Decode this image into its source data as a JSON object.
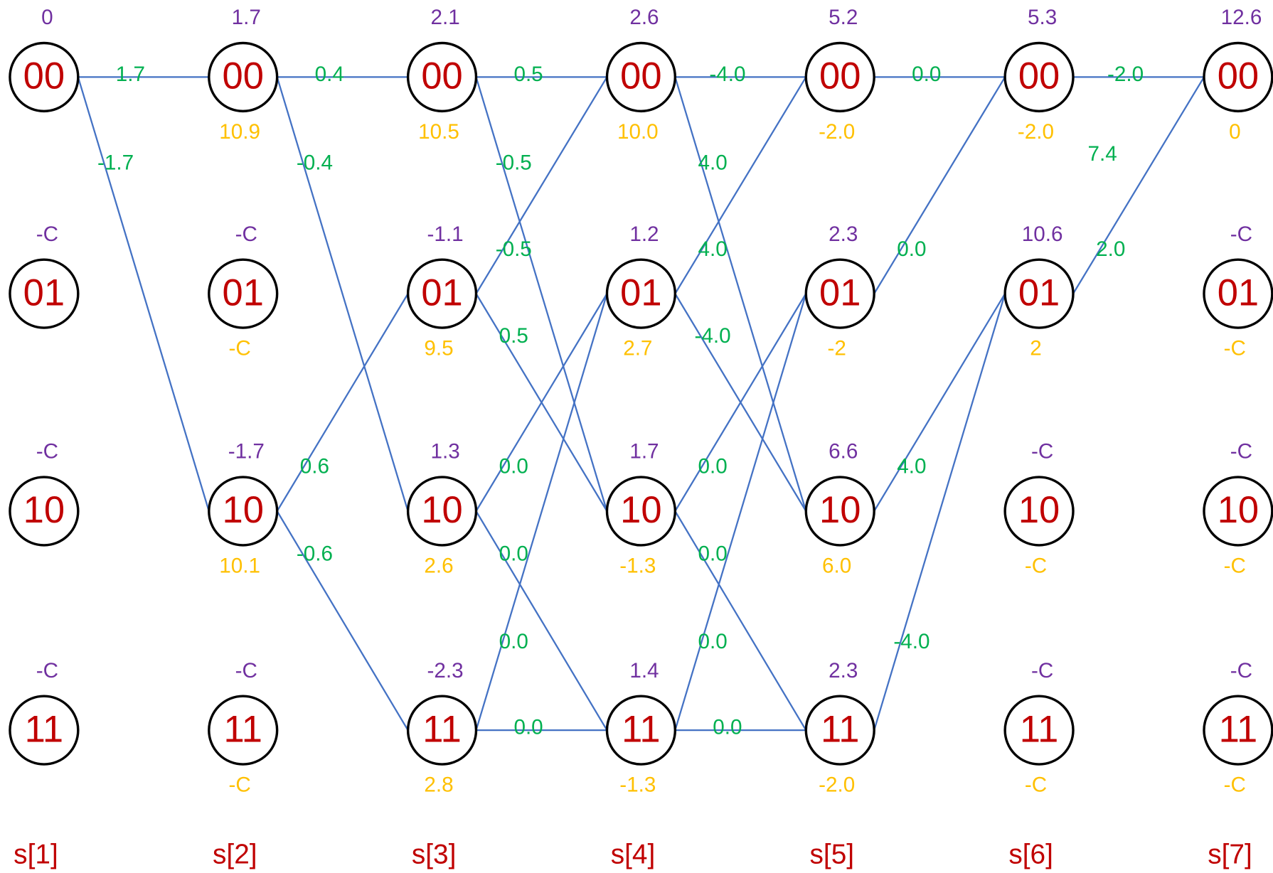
{
  "stages": [
    {
      "label": "s[1]",
      "nodes": [
        {
          "label": "00",
          "top": "0"
        },
        {
          "label": "01",
          "top": "-C"
        },
        {
          "label": "10",
          "top": "-C"
        },
        {
          "label": "11",
          "top": "-C"
        }
      ],
      "edges": [
        {
          "from": "00",
          "to": "00",
          "label": "1.7"
        },
        {
          "from": "00",
          "to": "10",
          "label": "-1.7"
        }
      ]
    },
    {
      "label": "s[2]",
      "nodes": [
        {
          "label": "00",
          "top": "1.7",
          "bottom": "10.9"
        },
        {
          "label": "01",
          "top": "-C",
          "bottom": "-C"
        },
        {
          "label": "10",
          "top": "-1.7",
          "bottom": "10.1"
        },
        {
          "label": "11",
          "top": "-C",
          "bottom": "-C"
        }
      ],
      "edges": [
        {
          "from": "00",
          "to": "00",
          "label": "0.4"
        },
        {
          "from": "00",
          "to": "10",
          "label": "-0.4"
        },
        {
          "from": "10",
          "to": "01",
          "label": "0.6"
        },
        {
          "from": "10",
          "to": "11",
          "label": "-0.6"
        }
      ]
    },
    {
      "label": "s[3]",
      "nodes": [
        {
          "label": "00",
          "top": "2.1",
          "bottom": "10.5"
        },
        {
          "label": "01",
          "top": "-1.1",
          "bottom": "9.5"
        },
        {
          "label": "10",
          "top": "1.3",
          "bottom": "2.6"
        },
        {
          "label": "11",
          "top": "-2.3",
          "bottom": "2.8"
        }
      ],
      "edges": [
        {
          "from": "00",
          "to": "00",
          "label": "0.5"
        },
        {
          "from": "00",
          "to": "10",
          "label": "-0.5"
        },
        {
          "from": "01",
          "to": "00",
          "label": "-0.5"
        },
        {
          "from": "01",
          "to": "10",
          "label": "0.5"
        },
        {
          "from": "10",
          "to": "01",
          "label": "0.0"
        },
        {
          "from": "10",
          "to": "11",
          "label": "0.0"
        },
        {
          "from": "11",
          "to": "01",
          "label": "0.0"
        },
        {
          "from": "11",
          "to": "11",
          "label": "0.0"
        }
      ]
    },
    {
      "label": "s[4]",
      "nodes": [
        {
          "label": "00",
          "top": "2.6",
          "bottom": "10.0"
        },
        {
          "label": "01",
          "top": "1.2",
          "bottom": "2.7"
        },
        {
          "label": "10",
          "top": "1.7",
          "bottom": "-1.3"
        },
        {
          "label": "11",
          "top": "1.4",
          "bottom": "-1.3"
        }
      ],
      "edges": [
        {
          "from": "00",
          "to": "00",
          "label": "-4.0"
        },
        {
          "from": "00",
          "to": "10",
          "label": "4.0"
        },
        {
          "from": "01",
          "to": "00",
          "label": "4.0"
        },
        {
          "from": "01",
          "to": "10",
          "label": "-4.0"
        },
        {
          "from": "10",
          "to": "01",
          "label": "0.0"
        },
        {
          "from": "10",
          "to": "11",
          "label": "0.0"
        },
        {
          "from": "11",
          "to": "01",
          "label": "0.0"
        },
        {
          "from": "11",
          "to": "11",
          "label": "0.0"
        }
      ]
    },
    {
      "label": "s[5]",
      "nodes": [
        {
          "label": "00",
          "top": "5.2",
          "bottom": "-2.0"
        },
        {
          "label": "01",
          "top": "2.3",
          "bottom": "-2"
        },
        {
          "label": "10",
          "top": "6.6",
          "bottom": "6.0"
        },
        {
          "label": "11",
          "top": "2.3",
          "bottom": "-2.0"
        }
      ],
      "edges": [
        {
          "from": "00",
          "to": "00",
          "label": "0.0"
        },
        {
          "from": "01",
          "to": "00",
          "label": "0.0"
        },
        {
          "from": "10",
          "to": "01",
          "label": "4.0"
        },
        {
          "from": "11",
          "to": "01",
          "label": "-4.0"
        }
      ]
    },
    {
      "label": "s[6]",
      "nodes": [
        {
          "label": "00",
          "top": "5.3",
          "bottom": "-2.0"
        },
        {
          "label": "01",
          "top": "10.6",
          "bottom": "2"
        },
        {
          "label": "10",
          "top": "-C",
          "bottom": "-C"
        },
        {
          "label": "11",
          "top": "-C",
          "bottom": "-C"
        }
      ],
      "edges": [
        {
          "from": "00",
          "to": "00",
          "label": "-2.0"
        },
        {
          "from": "01",
          "to": "00",
          "label": "2.0"
        }
      ]
    },
    {
      "label": "s[7]",
      "nodes": [
        {
          "label": "00",
          "top": "12.6",
          "bottom": "0"
        },
        {
          "label": "01",
          "top": "-C",
          "bottom": "-C"
        },
        {
          "label": "10",
          "top": "-C",
          "bottom": "-C"
        },
        {
          "label": "11",
          "top": "-C",
          "bottom": "-C"
        }
      ],
      "edges": []
    }
  ],
  "extra_label": "7.4"
}
